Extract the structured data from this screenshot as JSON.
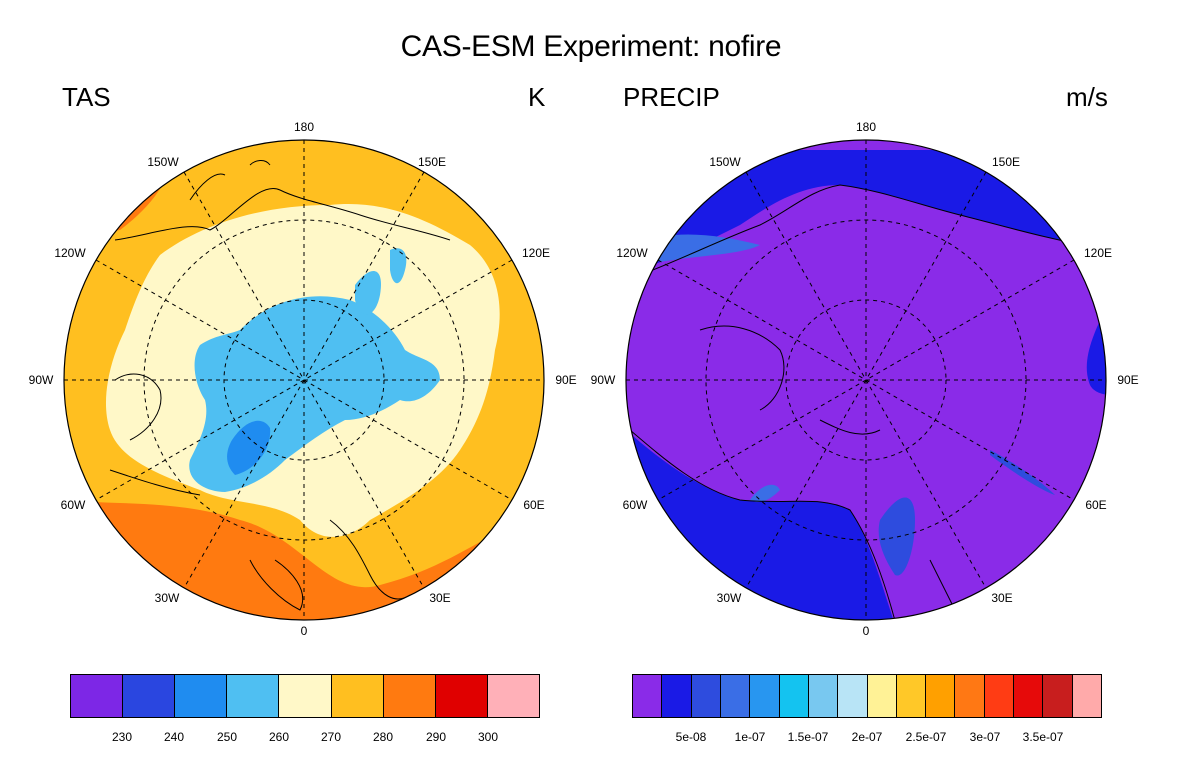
{
  "title": "CAS-ESM Experiment: nofire",
  "left_panel": {
    "variable": "TAS",
    "units": "K",
    "lon_labels": [
      "180",
      "150E",
      "120E",
      "90E",
      "60E",
      "30E",
      "0",
      "30W",
      "60W",
      "90W",
      "120W",
      "150W"
    ],
    "colorbar": {
      "colors": [
        "#7d27e6",
        "#2a46e0",
        "#1f8cf0",
        "#4fbff2",
        "#fff8c8",
        "#ffbf20",
        "#ff7a10",
        "#e00000",
        "#ffb0b8"
      ],
      "labels": [
        "230",
        "240",
        "250",
        "260",
        "270",
        "280",
        "290",
        "300"
      ]
    }
  },
  "right_panel": {
    "variable": "PRECIP",
    "units": "m/s",
    "lon_labels": [
      "180",
      "150E",
      "120E",
      "90E",
      "60E",
      "30E",
      "0",
      "30W",
      "60W",
      "90W",
      "120W",
      "150W"
    ],
    "colorbar": {
      "colors": [
        "#8a2be8",
        "#1a1ae6",
        "#2e4cde",
        "#3a6ee6",
        "#2896f0",
        "#14c3f0",
        "#78c8f0",
        "#b8e4f6",
        "#fff296",
        "#ffc828",
        "#ffa000",
        "#ff7814",
        "#ff3c14",
        "#e60a0a",
        "#c81e1e",
        "#ffaaaa"
      ],
      "labels": [
        "5e-08",
        "1e-07",
        "1.5e-07",
        "2e-07",
        "2.5e-07",
        "3e-07",
        "3.5e-07"
      ]
    }
  }
}
